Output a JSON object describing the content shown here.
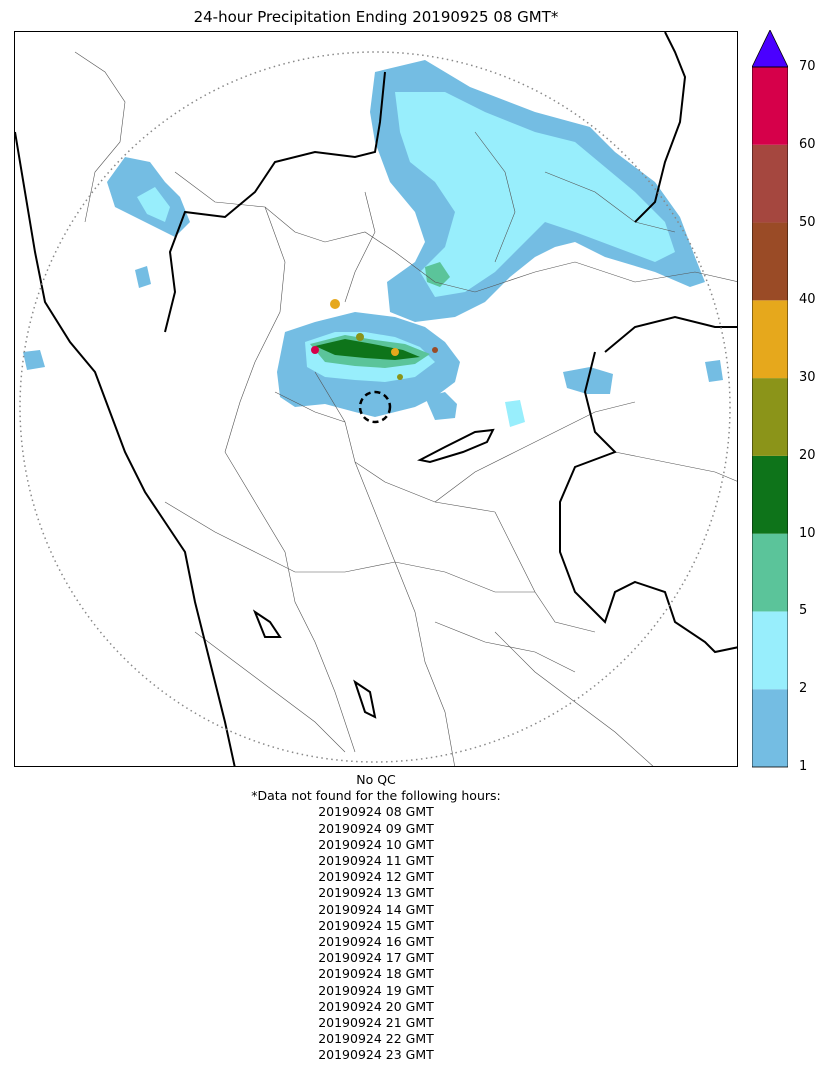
{
  "title": "24-hour Precipitation Ending 20190925 08 GMT*",
  "qc_status": "No QC",
  "missing_note": "*Data not found for the following hours:",
  "missing_hours": [
    "20190924 08 GMT",
    "20190924 09 GMT",
    "20190924 10 GMT",
    "20190924 11 GMT",
    "20190924 12 GMT",
    "20190924 13 GMT",
    "20190924 14 GMT",
    "20190924 15 GMT",
    "20190924 16 GMT",
    "20190924 17 GMT",
    "20190924 18 GMT",
    "20190924 19 GMT",
    "20190924 20 GMT",
    "20190924 21 GMT",
    "20190924 22 GMT",
    "20190924 23 GMT"
  ],
  "colorbar": {
    "ticks": [
      "1",
      "2",
      "5",
      "10",
      "20",
      "30",
      "40",
      "50",
      "60",
      "70"
    ],
    "bins": [
      {
        "from": "1",
        "to": "2",
        "color": "#74bde3"
      },
      {
        "from": "2",
        "to": "5",
        "color": "#98eefc"
      },
      {
        "from": "5",
        "to": "10",
        "color": "#5bc49a"
      },
      {
        "from": "10",
        "to": "20",
        "color": "#0e741a"
      },
      {
        "from": "20",
        "to": "30",
        "color": "#8b9419"
      },
      {
        "from": "30",
        "to": "40",
        "color": "#e6a81c"
      },
      {
        "from": "40",
        "to": "50",
        "color": "#9a4b26"
      },
      {
        "from": "50",
        "to": "60",
        "color": "#a5473f"
      },
      {
        "from": "60",
        "to": "70",
        "color": "#d6004a"
      }
    ],
    "extend_color": "#4a00ff"
  },
  "map": {
    "radar_range_ring": "dotted",
    "radar_site_marker": "dashed-circle",
    "boundaries": [
      "state",
      "district",
      "coastline"
    ]
  }
}
